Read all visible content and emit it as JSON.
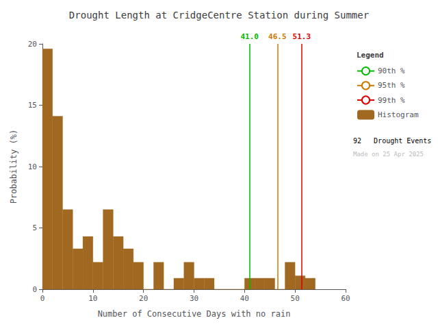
{
  "chart_data": {
    "type": "histogram",
    "title": "Drought Length at CridgeCentre Station during Summer",
    "xlabel": "Number of Consecutive Days with no rain",
    "ylabel": "Probability (%)",
    "bins": [
      0,
      2,
      4,
      6,
      8,
      10,
      12,
      14,
      16,
      18,
      20,
      22,
      24,
      26,
      28,
      30,
      32,
      34,
      36,
      38,
      40,
      42,
      44,
      46,
      48,
      50,
      52,
      54
    ],
    "values": [
      19.6,
      14.1,
      6.5,
      3.3,
      4.3,
      2.2,
      6.5,
      4.3,
      3.3,
      2.2,
      0.0,
      2.2,
      0.0,
      0.9,
      2.2,
      0.9,
      0.9,
      0.0,
      0.0,
      0.0,
      0.9,
      0.9,
      0.9,
      0.0,
      2.2,
      1.1,
      0.9
    ],
    "name": "Histogram",
    "color": "#A06820",
    "xlim": [
      0,
      60
    ],
    "ylim": [
      0,
      20
    ],
    "xticks": [
      0,
      10,
      20,
      30,
      40,
      50,
      60
    ],
    "yticks": [
      0,
      5,
      10,
      15,
      20
    ],
    "grid": false,
    "legend": "upper right",
    "legend_title": "Legend",
    "lines": [
      {
        "name": "90th %",
        "value": 41.0,
        "label": "41.0",
        "color": "#00BB00"
      },
      {
        "name": "95th %",
        "value": 46.5,
        "label": "46.5",
        "color": "#CC7700"
      },
      {
        "name": "99th %",
        "value": 51.3,
        "label": "51.3",
        "color": "#DD0000"
      }
    ],
    "annotations": [
      {
        "text": "92   Drought Events",
        "color": "#000000"
      },
      {
        "text": "Made on 25 Apr 2025",
        "color": "#BBBBBB"
      }
    ]
  }
}
